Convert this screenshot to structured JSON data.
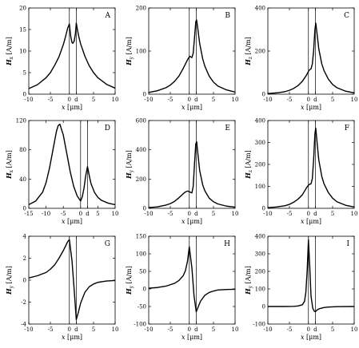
{
  "chart_data": [
    {
      "id": "A",
      "letter": "A",
      "type": "line",
      "ylabel": "Hx [A/m]",
      "ylabel_main": "H",
      "ylabel_sub": "x",
      "ylabel_unit": " [A/m]",
      "xlabel": "x [μm]",
      "xlabel_main": "x",
      "xlabel_unit": " [μm]",
      "xlim": [
        -10,
        10
      ],
      "ylim": [
        0,
        20
      ],
      "xticks": [
        {
          "v": -10,
          "label": "-10"
        },
        {
          "v": -5,
          "label": "-5"
        },
        {
          "v": -0.6,
          "label": "0"
        },
        {
          "v": 1.0,
          "label": "d"
        },
        {
          "v": 5,
          "label": "5"
        },
        {
          "v": 10,
          "label": "10"
        }
      ],
      "yticks": [
        {
          "v": 0,
          "label": "0"
        },
        {
          "v": 5,
          "label": "5"
        },
        {
          "v": 10,
          "label": "10"
        },
        {
          "v": 15,
          "label": "15"
        },
        {
          "v": 20,
          "label": "20"
        }
      ],
      "vlines": [
        -0.6,
        1.0
      ],
      "x": [
        -10,
        -8,
        -6,
        -5,
        -4,
        -3,
        -2,
        -1.5,
        -1,
        -0.6,
        -0.3,
        0,
        0.2,
        0.5,
        0.8,
        1,
        1.3,
        1.6,
        2,
        3,
        4,
        5,
        6,
        8,
        10
      ],
      "y": [
        1.3,
        2.2,
        3.8,
        5.0,
        6.7,
        8.7,
        11.5,
        13.3,
        15.3,
        16.3,
        13.5,
        12.0,
        11.8,
        12.3,
        14.0,
        16.5,
        14.8,
        13.3,
        11.7,
        8.8,
        6.6,
        5.0,
        3.8,
        2.3,
        1.4
      ]
    },
    {
      "id": "B",
      "letter": "B",
      "type": "line",
      "ylabel": "Hy [A/m]",
      "ylabel_main": "H",
      "ylabel_sub": "y",
      "ylabel_unit": " [A/m]",
      "xlabel": "x [μm]",
      "xlabel_main": "x",
      "xlabel_unit": " [μm]",
      "xlim": [
        -10,
        10
      ],
      "ylim": [
        0,
        200
      ],
      "xticks": [
        {
          "v": -10,
          "label": "-10"
        },
        {
          "v": -5,
          "label": "-5"
        },
        {
          "v": -0.6,
          "label": "0"
        },
        {
          "v": 1.0,
          "label": "d"
        },
        {
          "v": 5,
          "label": "5"
        },
        {
          "v": 10,
          "label": "10"
        }
      ],
      "yticks": [
        {
          "v": 0,
          "label": "0"
        },
        {
          "v": 100,
          "label": "100"
        },
        {
          "v": 200,
          "label": "200"
        }
      ],
      "vlines": [
        -0.6,
        1.0
      ],
      "x": [
        -10,
        -8,
        -6,
        -5,
        -4,
        -3,
        -2,
        -1,
        -0.5,
        0,
        0.3,
        0.6,
        0.9,
        1.1,
        1.4,
        1.8,
        2.5,
        3,
        4,
        5,
        6,
        8,
        10
      ],
      "y": [
        4,
        8,
        15,
        21,
        30,
        42,
        60,
        80,
        88,
        85,
        95,
        130,
        168,
        172,
        150,
        118,
        82,
        65,
        42,
        28,
        19,
        10,
        5
      ]
    },
    {
      "id": "C",
      "letter": "C",
      "type": "line",
      "ylabel": "Hz [A/m]",
      "ylabel_main": "H",
      "ylabel_sub": "z",
      "ylabel_unit": " [A/m]",
      "xlabel": "x [μm]",
      "xlabel_main": "x",
      "xlabel_unit": " [μm]",
      "xlim": [
        -10,
        10
      ],
      "ylim": [
        0,
        400
      ],
      "xticks": [
        {
          "v": -10,
          "label": "-10"
        },
        {
          "v": -5,
          "label": "-5"
        },
        {
          "v": -0.6,
          "label": "0"
        },
        {
          "v": 1.0,
          "label": "d"
        },
        {
          "v": 5,
          "label": "5"
        },
        {
          "v": 10,
          "label": "10"
        }
      ],
      "yticks": [
        {
          "v": 0,
          "label": "0"
        },
        {
          "v": 200,
          "label": "200"
        },
        {
          "v": 400,
          "label": "400"
        }
      ],
      "vlines": [
        -0.6,
        1.0
      ],
      "x": [
        -10,
        -8,
        -6,
        -5,
        -4,
        -3,
        -2,
        -1,
        -0.5,
        0,
        0.3,
        0.6,
        0.9,
        1.1,
        1.4,
        1.8,
        2.5,
        3,
        4,
        5,
        6,
        8,
        10
      ],
      "y": [
        3,
        6,
        12,
        18,
        27,
        40,
        60,
        90,
        110,
        118,
        140,
        200,
        300,
        330,
        280,
        210,
        140,
        110,
        70,
        45,
        30,
        14,
        6
      ]
    },
    {
      "id": "D",
      "letter": "D",
      "type": "line",
      "ylabel": "Hx [A/m]",
      "ylabel_main": "H",
      "ylabel_sub": "x",
      "ylabel_unit": " [A/m]",
      "xlabel": "x [μm]",
      "xlabel_main": "x",
      "xlabel_unit": " [μm]",
      "xlim": [
        -15,
        10
      ],
      "ylim": [
        0,
        120
      ],
      "xticks": [
        {
          "v": -15,
          "label": "-15"
        },
        {
          "v": -10,
          "label": "-10"
        },
        {
          "v": -5,
          "label": "-5"
        },
        {
          "v": 0,
          "label": "0"
        },
        {
          "v": 2,
          "label": "d"
        },
        {
          "v": 5,
          "label": "5"
        },
        {
          "v": 10,
          "label": "10"
        }
      ],
      "yticks": [
        {
          "v": 0,
          "label": "0"
        },
        {
          "v": 40,
          "label": "40"
        },
        {
          "v": 80,
          "label": "80"
        },
        {
          "v": 120,
          "label": "120"
        }
      ],
      "vlines": [
        0,
        2
      ],
      "x": [
        -15,
        -13,
        -11,
        -10,
        -9,
        -8,
        -7,
        -6.5,
        -6,
        -5,
        -4,
        -3,
        -2,
        -1,
        0,
        0.5,
        1,
        1.5,
        2,
        2.5,
        3,
        4,
        5,
        6,
        8,
        10
      ],
      "y": [
        5,
        10,
        22,
        35,
        55,
        80,
        105,
        113,
        115,
        100,
        75,
        50,
        30,
        17,
        10,
        16,
        28,
        45,
        57,
        45,
        34,
        22,
        15,
        11,
        7,
        5
      ]
    },
    {
      "id": "E",
      "letter": "E",
      "type": "line",
      "ylabel": "Hy [A/m]",
      "ylabel_main": "H",
      "ylabel_sub": "y",
      "ylabel_unit": " [A/m]",
      "xlabel": "x [μm]",
      "xlabel_main": "x",
      "xlabel_unit": " [μm]",
      "xlim": [
        -10,
        10
      ],
      "ylim": [
        0,
        600
      ],
      "xticks": [
        {
          "v": -10,
          "label": "-10"
        },
        {
          "v": -5,
          "label": "-5"
        },
        {
          "v": -0.6,
          "label": "0"
        },
        {
          "v": 1.0,
          "label": "d"
        },
        {
          "v": 5,
          "label": "5"
        },
        {
          "v": 10,
          "label": "10"
        }
      ],
      "yticks": [
        {
          "v": 0,
          "label": "0"
        },
        {
          "v": 200,
          "label": "200"
        },
        {
          "v": 400,
          "label": "400"
        },
        {
          "v": 600,
          "label": "600"
        }
      ],
      "vlines": [
        -0.6,
        1.0
      ],
      "x": [
        -10,
        -8,
        -6,
        -5,
        -4,
        -3,
        -2,
        -1.5,
        -1,
        -0.5,
        0,
        0.3,
        0.6,
        0.9,
        1.1,
        1.4,
        1.8,
        2.5,
        3,
        4,
        5,
        6,
        8,
        10
      ],
      "y": [
        5,
        10,
        22,
        32,
        48,
        72,
        100,
        112,
        118,
        112,
        105,
        150,
        300,
        440,
        455,
        370,
        260,
        160,
        120,
        70,
        45,
        30,
        15,
        8
      ]
    },
    {
      "id": "F",
      "letter": "F",
      "type": "line",
      "ylabel": "Hz [A/m]",
      "ylabel_main": "H",
      "ylabel_sub": "z",
      "ylabel_unit": " [A/m]",
      "xlabel": "x [μm]",
      "xlabel_main": "x",
      "xlabel_unit": " [μm]",
      "xlim": [
        -10,
        10
      ],
      "ylim": [
        0,
        400
      ],
      "xticks": [
        {
          "v": -10,
          "label": "-10"
        },
        {
          "v": -5,
          "label": "-5"
        },
        {
          "v": -0.6,
          "label": "0"
        },
        {
          "v": 1.0,
          "label": "d"
        },
        {
          "v": 5,
          "label": "5"
        },
        {
          "v": 10,
          "label": "10"
        }
      ],
      "yticks": [
        {
          "v": 0,
          "label": "0"
        },
        {
          "v": 100,
          "label": "100"
        },
        {
          "v": 200,
          "label": "200"
        },
        {
          "v": 300,
          "label": "300"
        },
        {
          "v": 400,
          "label": "400"
        }
      ],
      "vlines": [
        -0.6,
        1.0
      ],
      "x": [
        -10,
        -8,
        -6,
        -5,
        -4,
        -3,
        -2,
        -1,
        -0.5,
        0,
        0.3,
        0.6,
        0.9,
        1.1,
        1.4,
        1.8,
        2.5,
        3,
        4,
        5,
        6,
        8,
        10
      ],
      "y": [
        3,
        6,
        12,
        18,
        28,
        42,
        62,
        95,
        108,
        112,
        135,
        220,
        340,
        365,
        300,
        220,
        145,
        112,
        72,
        46,
        30,
        14,
        6
      ]
    },
    {
      "id": "G",
      "letter": "G",
      "type": "line",
      "ylabel": "Hy [A/m]",
      "ylabel_main": "H",
      "ylabel_sub": "y",
      "ylabel_unit": " [A/m]",
      "xlabel": "x [μm]",
      "xlabel_main": "x",
      "xlabel_unit": " [μm]",
      "xlim": [
        -10,
        10
      ],
      "ylim": [
        -4,
        4
      ],
      "xticks": [
        {
          "v": -10,
          "label": "-10"
        },
        {
          "v": -5,
          "label": "-5"
        },
        {
          "v": -0.6,
          "label": "0"
        },
        {
          "v": 1.0,
          "label": "d"
        },
        {
          "v": 5,
          "label": "5"
        },
        {
          "v": 10,
          "label": "10"
        }
      ],
      "yticks": [
        {
          "v": -4,
          "label": "-4"
        },
        {
          "v": -2,
          "label": "-2"
        },
        {
          "v": 0,
          "label": "0"
        },
        {
          "v": 2,
          "label": "2"
        },
        {
          "v": 4,
          "label": "4"
        }
      ],
      "vlines": [
        -0.6,
        1.0
      ],
      "x": [
        -10,
        -8,
        -6,
        -5,
        -4,
        -3,
        -2,
        -1.5,
        -1,
        -0.6,
        0,
        0.5,
        1.0,
        1.5,
        2,
        3,
        4,
        5,
        6,
        8,
        10
      ],
      "y": [
        0.2,
        0.4,
        0.7,
        1.0,
        1.4,
        2.0,
        2.7,
        3.1,
        3.5,
        3.7,
        1.8,
        -0.8,
        -3.6,
        -2.9,
        -2.1,
        -1.1,
        -0.6,
        -0.35,
        -0.2,
        -0.08,
        -0.03
      ]
    },
    {
      "id": "H",
      "letter": "H",
      "type": "line",
      "ylabel": "Hy [A/m]",
      "ylabel_main": "H",
      "ylabel_sub": "y",
      "ylabel_unit": " [A/m]",
      "xlabel": "x [μm]",
      "xlabel_main": "x",
      "xlabel_unit": " [μm]",
      "xlim": [
        -10,
        10
      ],
      "ylim": [
        -100,
        150
      ],
      "xticks": [
        {
          "v": -10,
          "label": "-10"
        },
        {
          "v": -5,
          "label": "-5"
        },
        {
          "v": -0.6,
          "label": "0"
        },
        {
          "v": 1.0,
          "label": "d"
        },
        {
          "v": 5,
          "label": "5"
        },
        {
          "v": 10,
          "label": "10"
        }
      ],
      "yticks": [
        {
          "v": -100,
          "label": "-100"
        },
        {
          "v": -50,
          "label": "-50"
        },
        {
          "v": 0,
          "label": "0"
        },
        {
          "v": 50,
          "label": "50"
        },
        {
          "v": 100,
          "label": "100"
        },
        {
          "v": 150,
          "label": "150"
        }
      ],
      "vlines": [
        -0.6,
        1.0
      ],
      "x": [
        -10,
        -8,
        -6,
        -4,
        -3,
        -2,
        -1.5,
        -1,
        -0.6,
        0,
        0.5,
        1.0,
        1.5,
        2,
        3,
        4,
        5,
        6,
        8,
        10
      ],
      "y": [
        2,
        4,
        8,
        16,
        24,
        38,
        52,
        80,
        120,
        60,
        -20,
        -65,
        -50,
        -35,
        -18,
        -10,
        -6,
        -3,
        -1.5,
        -1
      ]
    },
    {
      "id": "I",
      "letter": "I",
      "type": "line",
      "ylabel": "Hy [A/m]",
      "ylabel_main": "H",
      "ylabel_sub": "y",
      "ylabel_unit": " [A/m]",
      "xlabel": "x [μm]",
      "xlabel_main": "x",
      "xlabel_unit": " [μm]",
      "xlim": [
        -10,
        10
      ],
      "ylim": [
        -100,
        400
      ],
      "xticks": [
        {
          "v": -10,
          "label": "-10"
        },
        {
          "v": -5,
          "label": "-5"
        },
        {
          "v": -0.6,
          "label": "0"
        },
        {
          "v": 1.0,
          "label": "d"
        },
        {
          "v": 5,
          "label": "5"
        },
        {
          "v": 10,
          "label": "10"
        }
      ],
      "yticks": [
        {
          "v": -100,
          "label": "-100"
        },
        {
          "v": 0,
          "label": "0"
        },
        {
          "v": 100,
          "label": "100"
        },
        {
          "v": 200,
          "label": "200"
        },
        {
          "v": 300,
          "label": "300"
        },
        {
          "v": 400,
          "label": "400"
        }
      ],
      "vlines": [
        -0.6,
        1.0
      ],
      "x": [
        -10,
        -6,
        -4,
        -3,
        -2,
        -1.5,
        -1.2,
        -0.9,
        -0.6,
        -0.3,
        0,
        0.4,
        0.8,
        1.0,
        1.4,
        2,
        3,
        4,
        6,
        10
      ],
      "y": [
        0,
        0,
        1,
        3,
        10,
        30,
        80,
        200,
        380,
        230,
        60,
        -10,
        -28,
        -30,
        -20,
        -12,
        -6,
        -3,
        -1,
        0
      ]
    }
  ]
}
